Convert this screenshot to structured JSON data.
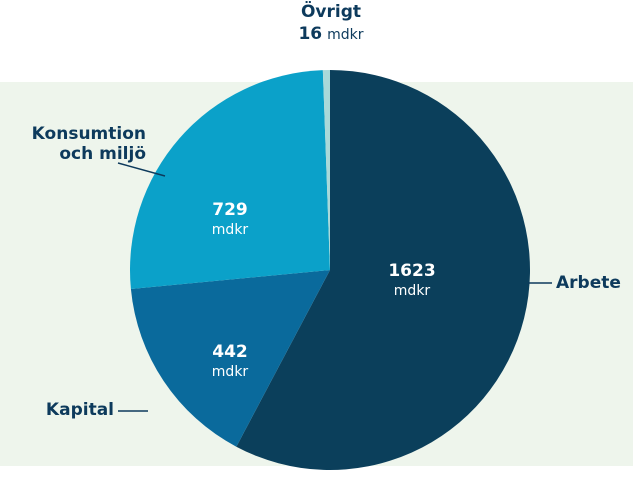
{
  "chart_data": {
    "type": "pie",
    "categories": [
      "Arbete",
      "Kapital",
      "Konsumtion och miljö",
      "Övrigt"
    ],
    "values": [
      1623,
      442,
      729,
      16
    ],
    "unit": "mdkr",
    "colors": [
      "#0b3f5b",
      "#0a6a9c",
      "#0ba1c9",
      "#a9d9d9"
    ]
  }
}
